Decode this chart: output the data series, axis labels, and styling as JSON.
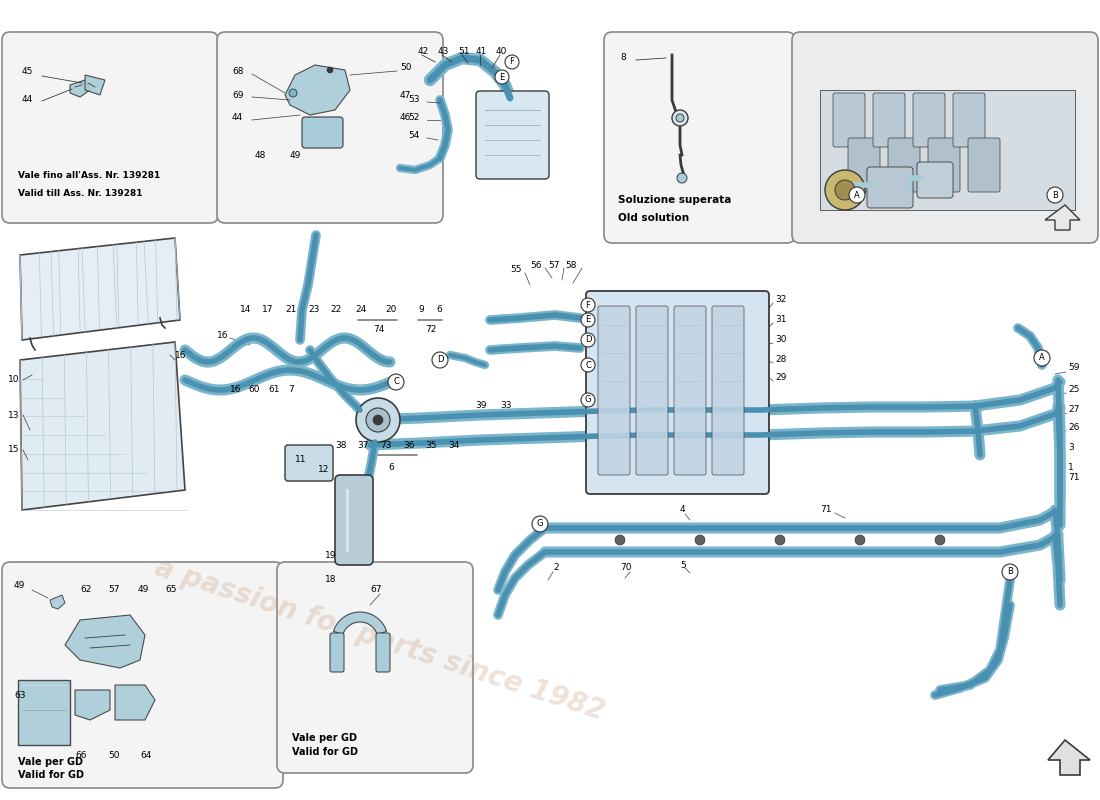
{
  "bg_color": "#ffffff",
  "diagram_color": "#7ab5cc",
  "line_color": "#4a90b0",
  "sketch_color": "#3a3a3a",
  "light_blue": "#a8ccd8",
  "mid_blue": "#5a9ab8",
  "watermark_text": "a passion for parts since 1982",
  "watermark_color": "#c8a080",
  "watermark_alpha": 0.3,
  "box1_label1": "Vale fino all'Ass. Nr. 139281",
  "box1_label2": "Valid till Ass. Nr. 139281",
  "box2_label1": "Soluzione superata",
  "box2_label2": "Old solution",
  "box3_label1": "Vale per GD",
  "box3_label2": "Valid for GD",
  "box4_label1": "Vale per GD",
  "box4_label2": "Valid for GD",
  "fs": 7.5,
  "fs_small": 6.5,
  "fs_label": 7.0
}
